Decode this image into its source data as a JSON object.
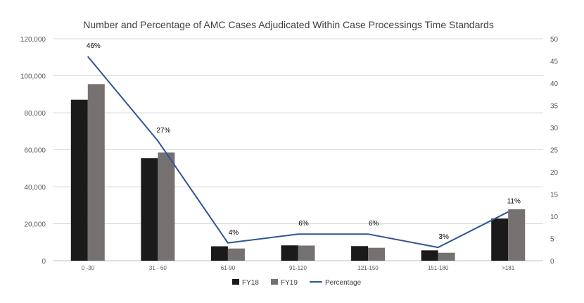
{
  "chart_data": {
    "type": "bar",
    "title": "Number and Percentage of AMC Cases Adjudicated Within Case Processings Time Standards",
    "categories": [
      "0 -30",
      "31 - 60",
      "61-90",
      "91-120",
      "121-150",
      "151-180",
      ">181"
    ],
    "series": [
      {
        "name": "FY18",
        "type": "bar",
        "axis": "left",
        "color": "#1a1a1a",
        "values": [
          87000,
          55500,
          7800,
          8300,
          7900,
          5600,
          22800
        ]
      },
      {
        "name": "FY19",
        "type": "bar",
        "axis": "left",
        "color": "#767171",
        "values": [
          95500,
          58500,
          6600,
          8200,
          7000,
          4300,
          27800
        ]
      },
      {
        "name": "Percentage",
        "type": "line",
        "axis": "right",
        "color": "#2f5597",
        "values": [
          46,
          27,
          4,
          6,
          6,
          3,
          11
        ],
        "data_labels": [
          "46%",
          "27%",
          "4%",
          "6%",
          "6%",
          "3%",
          "11%"
        ]
      }
    ],
    "y_left": {
      "min": 0,
      "max": 120000,
      "step": 20000,
      "tick_labels": [
        "0",
        "20,000",
        "40,000",
        "60,000",
        "80,000",
        "100,000",
        "120,000"
      ]
    },
    "y_right": {
      "min": 0,
      "max": 50,
      "step": 5,
      "tick_labels": [
        "0",
        "5",
        "10",
        "15",
        "20",
        "25",
        "30",
        "35",
        "40",
        "45",
        "50"
      ]
    },
    "grid": true,
    "legend_position": "bottom",
    "colors": {
      "gridline": "#d9d9d9",
      "axis_line": "#bfbfbf"
    }
  }
}
